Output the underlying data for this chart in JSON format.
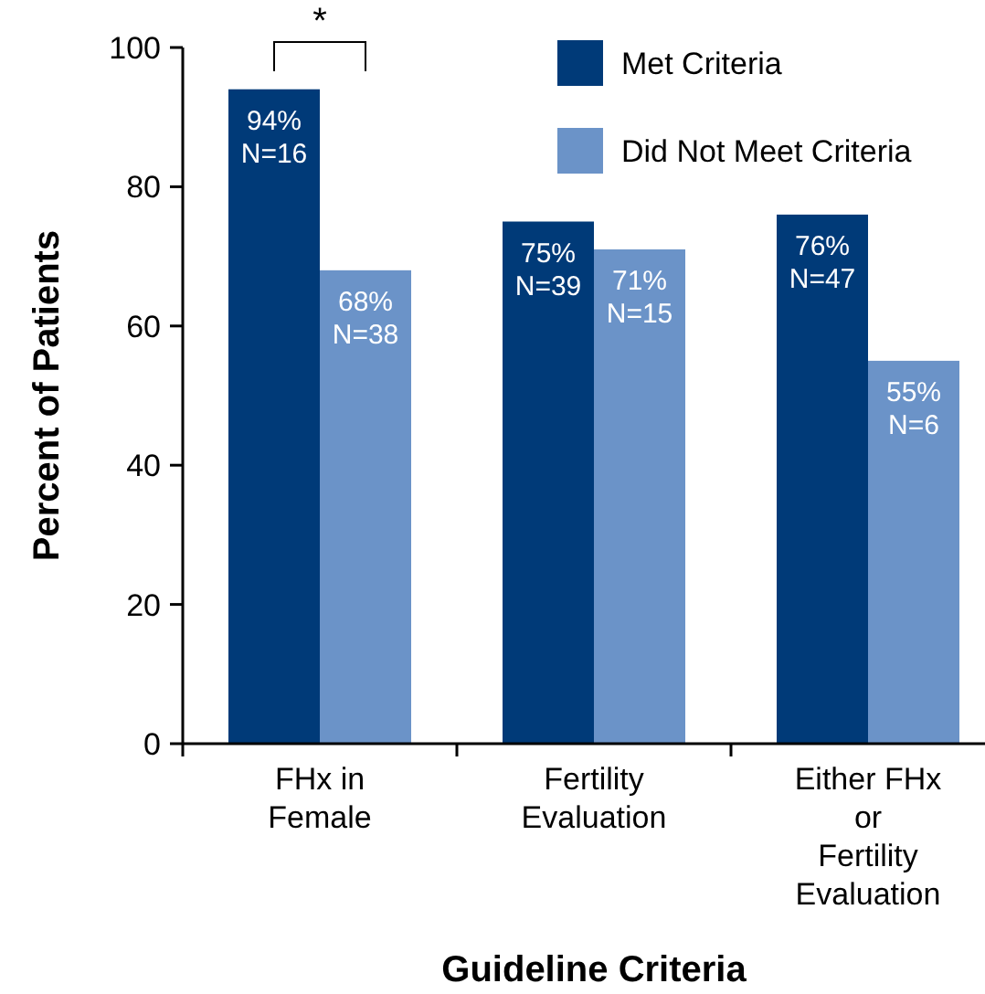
{
  "chart_data": {
    "type": "bar",
    "xlabel": "Guideline Criteria",
    "ylabel": "Percent of Patients",
    "categories": [
      "FHx in\nFemale",
      "Fertility\nEvaluation",
      "Either FHx\nor\nFertility\nEvaluation"
    ],
    "series": [
      {
        "name": "Met Criteria",
        "color": "#003a78",
        "values": [
          94,
          75,
          76
        ],
        "value_labels": [
          "94%\nN=16",
          "75%\nN=39",
          "76%\nN=47"
        ]
      },
      {
        "name": "Did Not Meet Criteria",
        "color": "#6b93c8",
        "values": [
          68,
          71,
          55
        ],
        "value_labels": [
          "68%\nN=38",
          "71%\nN=15",
          "55%\nN=6"
        ]
      }
    ],
    "ylim": [
      0,
      100
    ],
    "yticks": [
      0,
      20,
      40,
      60,
      80,
      100
    ],
    "grid": false,
    "legend": "top right",
    "annotations": [
      "*"
    ]
  }
}
